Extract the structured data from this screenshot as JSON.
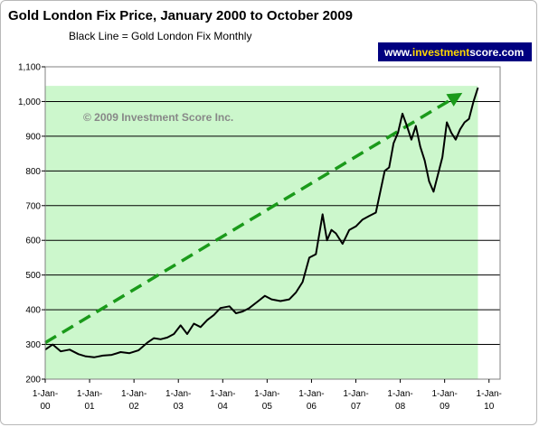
{
  "chart_data": {
    "type": "line",
    "title": "Gold London Fix Price, January 2000 to October 2009",
    "subtitle": "Black Line = Gold London Fix Monthly",
    "watermark": "© 2009 Investment Score Inc.",
    "brand": {
      "prefix": "www.",
      "highlight": "investment",
      "suffix": "score.com",
      "background": "#000080",
      "prefix_color": "#ffffff",
      "highlight_color": "#ffd800",
      "suffix_color": "#ffffff"
    },
    "ylim": [
      200,
      1100
    ],
    "yticks": [
      200,
      300,
      400,
      500,
      600,
      700,
      800,
      900,
      1000,
      1100
    ],
    "ytick_labels": [
      "200",
      "300",
      "400",
      "500",
      "600",
      "700",
      "800",
      "900",
      "1,000",
      "1,100"
    ],
    "xlim": [
      2000.0,
      2010.25
    ],
    "xticks": [
      {
        "x": 2000,
        "label1": "1-Jan-",
        "label2": "00"
      },
      {
        "x": 2001,
        "label1": "1-Jan-",
        "label2": "01"
      },
      {
        "x": 2002,
        "label1": "1-Jan-",
        "label2": "02"
      },
      {
        "x": 2003,
        "label1": "1-Jan-",
        "label2": "03"
      },
      {
        "x": 2004,
        "label1": "1-Jan-",
        "label2": "04"
      },
      {
        "x": 2005,
        "label1": "1-Jan-",
        "label2": "05"
      },
      {
        "x": 2006,
        "label1": "1-Jan-",
        "label2": "06"
      },
      {
        "x": 2007,
        "label1": "1-Jan-",
        "label2": "07"
      },
      {
        "x": 2008,
        "label1": "1-Jan-",
        "label2": "08"
      },
      {
        "x": 2009,
        "label1": "1-Jan-",
        "label2": "09"
      },
      {
        "x": 2010,
        "label1": "1-Jan-",
        "label2": "10"
      }
    ],
    "grid": true,
    "shaded_region": {
      "x": [
        2000.0,
        2009.75
      ],
      "y": [
        200,
        1045
      ],
      "color": "#ccf7cc"
    },
    "trend_arrow": {
      "x": [
        2000.0,
        2009.4
      ],
      "y": [
        305,
        1025
      ],
      "color": "#1a9a1a",
      "style": "dashed"
    },
    "series": [
      {
        "color": "#000000",
        "x": [
          2000.0,
          2000.17,
          2000.35,
          2000.55,
          2000.75,
          2000.9,
          2001.1,
          2001.3,
          2001.5,
          2001.7,
          2001.9,
          2002.1,
          2002.3,
          2002.45,
          2002.6,
          2002.75,
          2002.9,
          2003.05,
          2003.2,
          2003.35,
          2003.5,
          2003.65,
          2003.8,
          2003.95,
          2004.15,
          2004.3,
          2004.45,
          2004.6,
          2004.8,
          2004.95,
          2005.1,
          2005.3,
          2005.5,
          2005.65,
          2005.8,
          2005.95,
          2006.1,
          2006.25,
          2006.35,
          2006.45,
          2006.55,
          2006.7,
          2006.85,
          2007.0,
          2007.15,
          2007.3,
          2007.45,
          2007.55,
          2007.65,
          2007.75,
          2007.85,
          2007.95,
          2008.05,
          2008.15,
          2008.25,
          2008.35,
          2008.45,
          2008.55,
          2008.65,
          2008.75,
          2008.85,
          2008.95,
          2009.05,
          2009.15,
          2009.25,
          2009.35,
          2009.45,
          2009.55,
          2009.65,
          2009.75
        ],
        "y": [
          285,
          300,
          280,
          285,
          272,
          266,
          263,
          268,
          270,
          278,
          275,
          283,
          305,
          318,
          315,
          320,
          330,
          355,
          330,
          360,
          350,
          370,
          385,
          405,
          410,
          390,
          395,
          405,
          425,
          440,
          430,
          425,
          430,
          450,
          480,
          550,
          560,
          675,
          600,
          630,
          620,
          590,
          630,
          640,
          660,
          670,
          680,
          740,
          800,
          810,
          880,
          910,
          965,
          930,
          890,
          930,
          870,
          830,
          770,
          740,
          790,
          840,
          940,
          910,
          890,
          920,
          940,
          950,
          1000,
          1040
        ]
      }
    ]
  }
}
